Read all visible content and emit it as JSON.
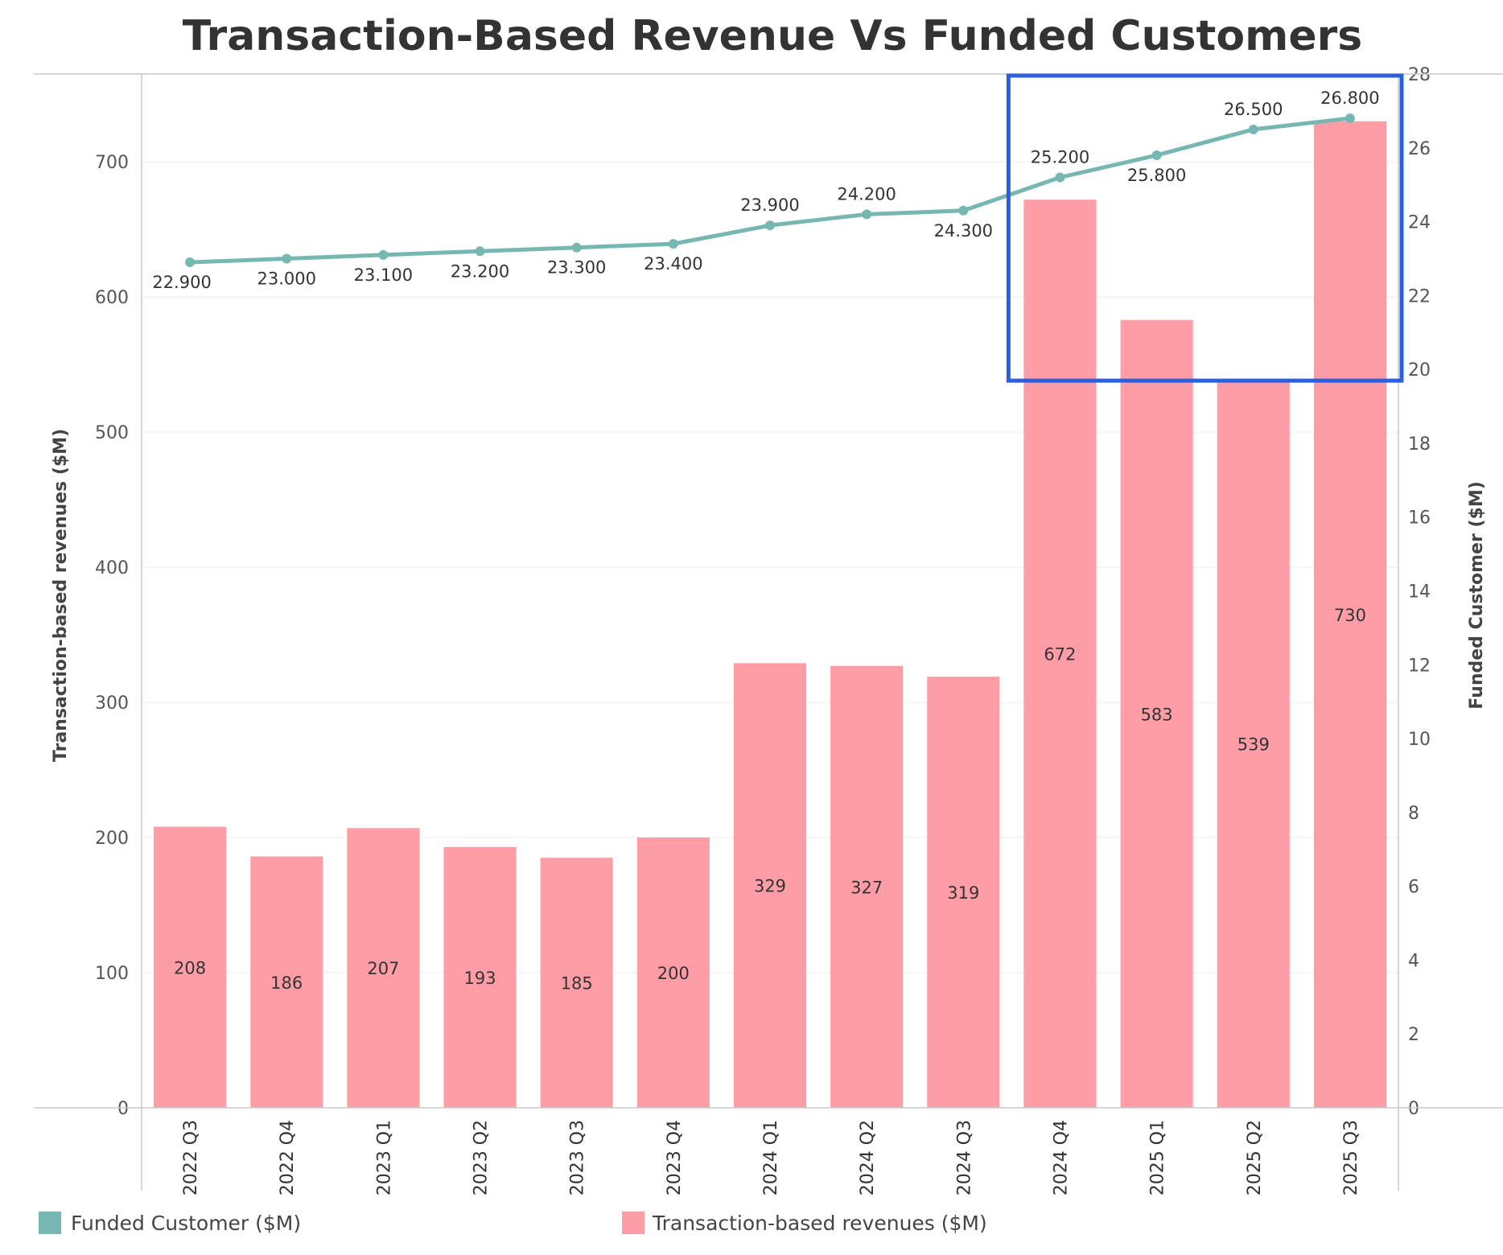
{
  "chart_data": {
    "type": "bar",
    "title": "Transaction-Based Revenue Vs Funded Customers",
    "categories": [
      "2022 Q3",
      "2022 Q4",
      "2023 Q1",
      "2023 Q2",
      "2023 Q3",
      "2023 Q4",
      "2024 Q1",
      "2024 Q2",
      "2024 Q3",
      "2024 Q4",
      "2025 Q1",
      "2025 Q2",
      "2025 Q3"
    ],
    "ylabel": "Transaction-based revenues ($M)",
    "y2label": "Funded Customer ($M)",
    "ylim": [
      0,
      765
    ],
    "y2lim": [
      0,
      28
    ],
    "yticks": [
      "0",
      "100",
      "200",
      "300",
      "400",
      "500",
      "600",
      "700"
    ],
    "y2ticks": [
      "0",
      "2",
      "4",
      "6",
      "8",
      "10",
      "12",
      "14",
      "16",
      "18",
      "20",
      "22",
      "24",
      "26",
      "28"
    ],
    "grid": true,
    "legend": "bottom",
    "series": [
      {
        "name": "Transaction-based revenues ($M)",
        "type": "bar",
        "axis": "left",
        "color": "#FF9DA7",
        "values": [
          208,
          186,
          207,
          193,
          185,
          200,
          329,
          327,
          319,
          672,
          583,
          539,
          730
        ],
        "labels": [
          "208",
          "186",
          "207",
          "193",
          "185",
          "200",
          "329",
          "327",
          "319",
          "672",
          "583",
          "539",
          "730"
        ]
      },
      {
        "name": "Funded Customer ($M)",
        "type": "line",
        "axis": "right",
        "color": "#76B7B2",
        "values": [
          22.9,
          23.0,
          23.1,
          23.2,
          23.3,
          23.4,
          23.9,
          24.2,
          24.3,
          25.2,
          25.8,
          26.5,
          26.8
        ],
        "labels": [
          "22.900",
          "23.000",
          "23.100",
          "23.200",
          "23.300",
          "23.400",
          "23.900",
          "24.200",
          "24.300",
          "25.200",
          "25.800",
          "26.500",
          "26.800"
        ],
        "label_side": [
          "below",
          "below",
          "below",
          "below",
          "below",
          "below",
          "above",
          "above",
          "below",
          "above",
          "below",
          "above",
          "above"
        ]
      }
    ],
    "annotation": {
      "type": "highlight-box",
      "color": "#2B5FE0",
      "x_range": [
        "2024 Q4",
        "2025 Q3"
      ],
      "y2_range": [
        20,
        28
      ]
    }
  }
}
